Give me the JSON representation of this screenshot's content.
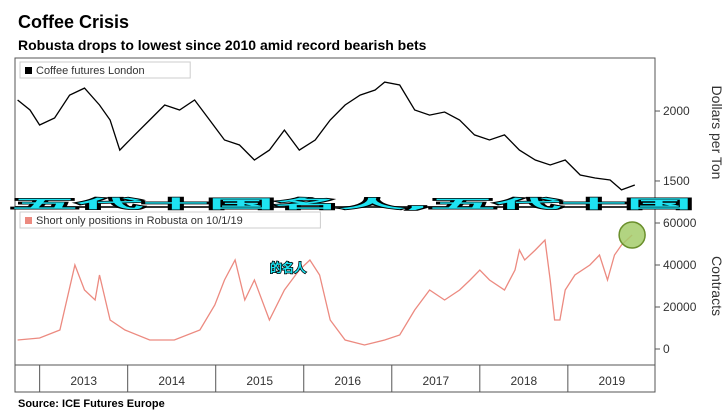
{
  "chart_data": [
    {
      "type": "line",
      "title": "Coffee Crisis",
      "subtitle": "Robusta drops to lowest since 2010 amid record bearish bets",
      "y2label": "Dollars per Ton",
      "xlim": [
        2012.72,
        2019.99
      ],
      "ylim": [
        1314,
        2379
      ],
      "yticks": [
        2000,
        1500
      ],
      "series": [
        {
          "name": "Coffee futures London",
          "color": "#000000",
          "x": [
            2012.75,
            2012.89,
            2013.0,
            2013.17,
            2013.34,
            2013.51,
            2013.68,
            2013.8,
            2013.91,
            2014.08,
            2014.25,
            2014.42,
            2014.59,
            2014.76,
            2014.93,
            2015.1,
            2015.27,
            2015.44,
            2015.61,
            2015.78,
            2015.95,
            2016.13,
            2016.3,
            2016.47,
            2016.64,
            2016.81,
            2016.92,
            2017.09,
            2017.26,
            2017.43,
            2017.6,
            2017.77,
            2017.94,
            2018.11,
            2018.28,
            2018.45,
            2018.63,
            2018.8,
            2018.97,
            2019.14,
            2019.31,
            2019.48,
            2019.61,
            2019.76
          ],
          "values": [
            2079,
            2007,
            1900,
            1950,
            2114,
            2164,
            2043,
            1936,
            1721,
            1829,
            1936,
            2043,
            2007,
            2079,
            1936,
            1793,
            1757,
            1650,
            1721,
            1864,
            1721,
            1793,
            1936,
            2043,
            2114,
            2150,
            2207,
            2186,
            2007,
            1971,
            1993,
            1936,
            1829,
            1793,
            1829,
            1721,
            1650,
            1614,
            1650,
            1543,
            1521,
            1507,
            1436,
            1471
          ]
        }
      ]
    },
    {
      "type": "line",
      "y2label": "Contracts",
      "source": "Source: ICE Futures Europe",
      "xlim": [
        2012.72,
        2019.99
      ],
      "xticks": [
        2013,
        2014,
        2015,
        2016,
        2017,
        2018,
        2019
      ],
      "ylim": [
        -7619,
        67619
      ],
      "yticks": [
        60000,
        40000,
        20000,
        0
      ],
      "series": [
        {
          "name": "Short only positions in Robusta on 10/1/19",
          "color": "#ec8a80",
          "x": [
            2012.75,
            2013.0,
            2013.23,
            2013.4,
            2013.51,
            2013.63,
            2013.68,
            2013.8,
            2013.97,
            2014.25,
            2014.53,
            2014.82,
            2014.99,
            2015.1,
            2015.22,
            2015.33,
            2015.44,
            2015.61,
            2015.78,
            2015.95,
            2016.07,
            2016.18,
            2016.3,
            2016.47,
            2016.69,
            2016.92,
            2017.09,
            2017.26,
            2017.43,
            2017.6,
            2017.77,
            2017.89,
            2018.0,
            2018.11,
            2018.28,
            2018.4,
            2018.45,
            2018.51,
            2018.63,
            2018.74,
            2018.8,
            2018.85,
            2018.91,
            2018.97,
            2019.08,
            2019.25,
            2019.36,
            2019.45,
            2019.53,
            2019.61,
            2019.73
          ],
          "values": [
            4286,
            5238,
            9048,
            40000,
            28095,
            23333,
            35238,
            13810,
            9048,
            4286,
            4286,
            9048,
            20952,
            32857,
            42381,
            23333,
            32857,
            13810,
            28095,
            37619,
            42381,
            35238,
            13810,
            4286,
            1905,
            4286,
            6667,
            18571,
            28095,
            23333,
            28095,
            32857,
            37619,
            32857,
            28095,
            37619,
            47143,
            42381,
            47143,
            51905,
            32857,
            13810,
            13810,
            28095,
            35238,
            40000,
            44762,
            32857,
            44762,
            49524,
            54286
          ]
        }
      ]
    }
  ],
  "overlay": [
    "五代十国名人,五代十国",
    "的名人"
  ]
}
